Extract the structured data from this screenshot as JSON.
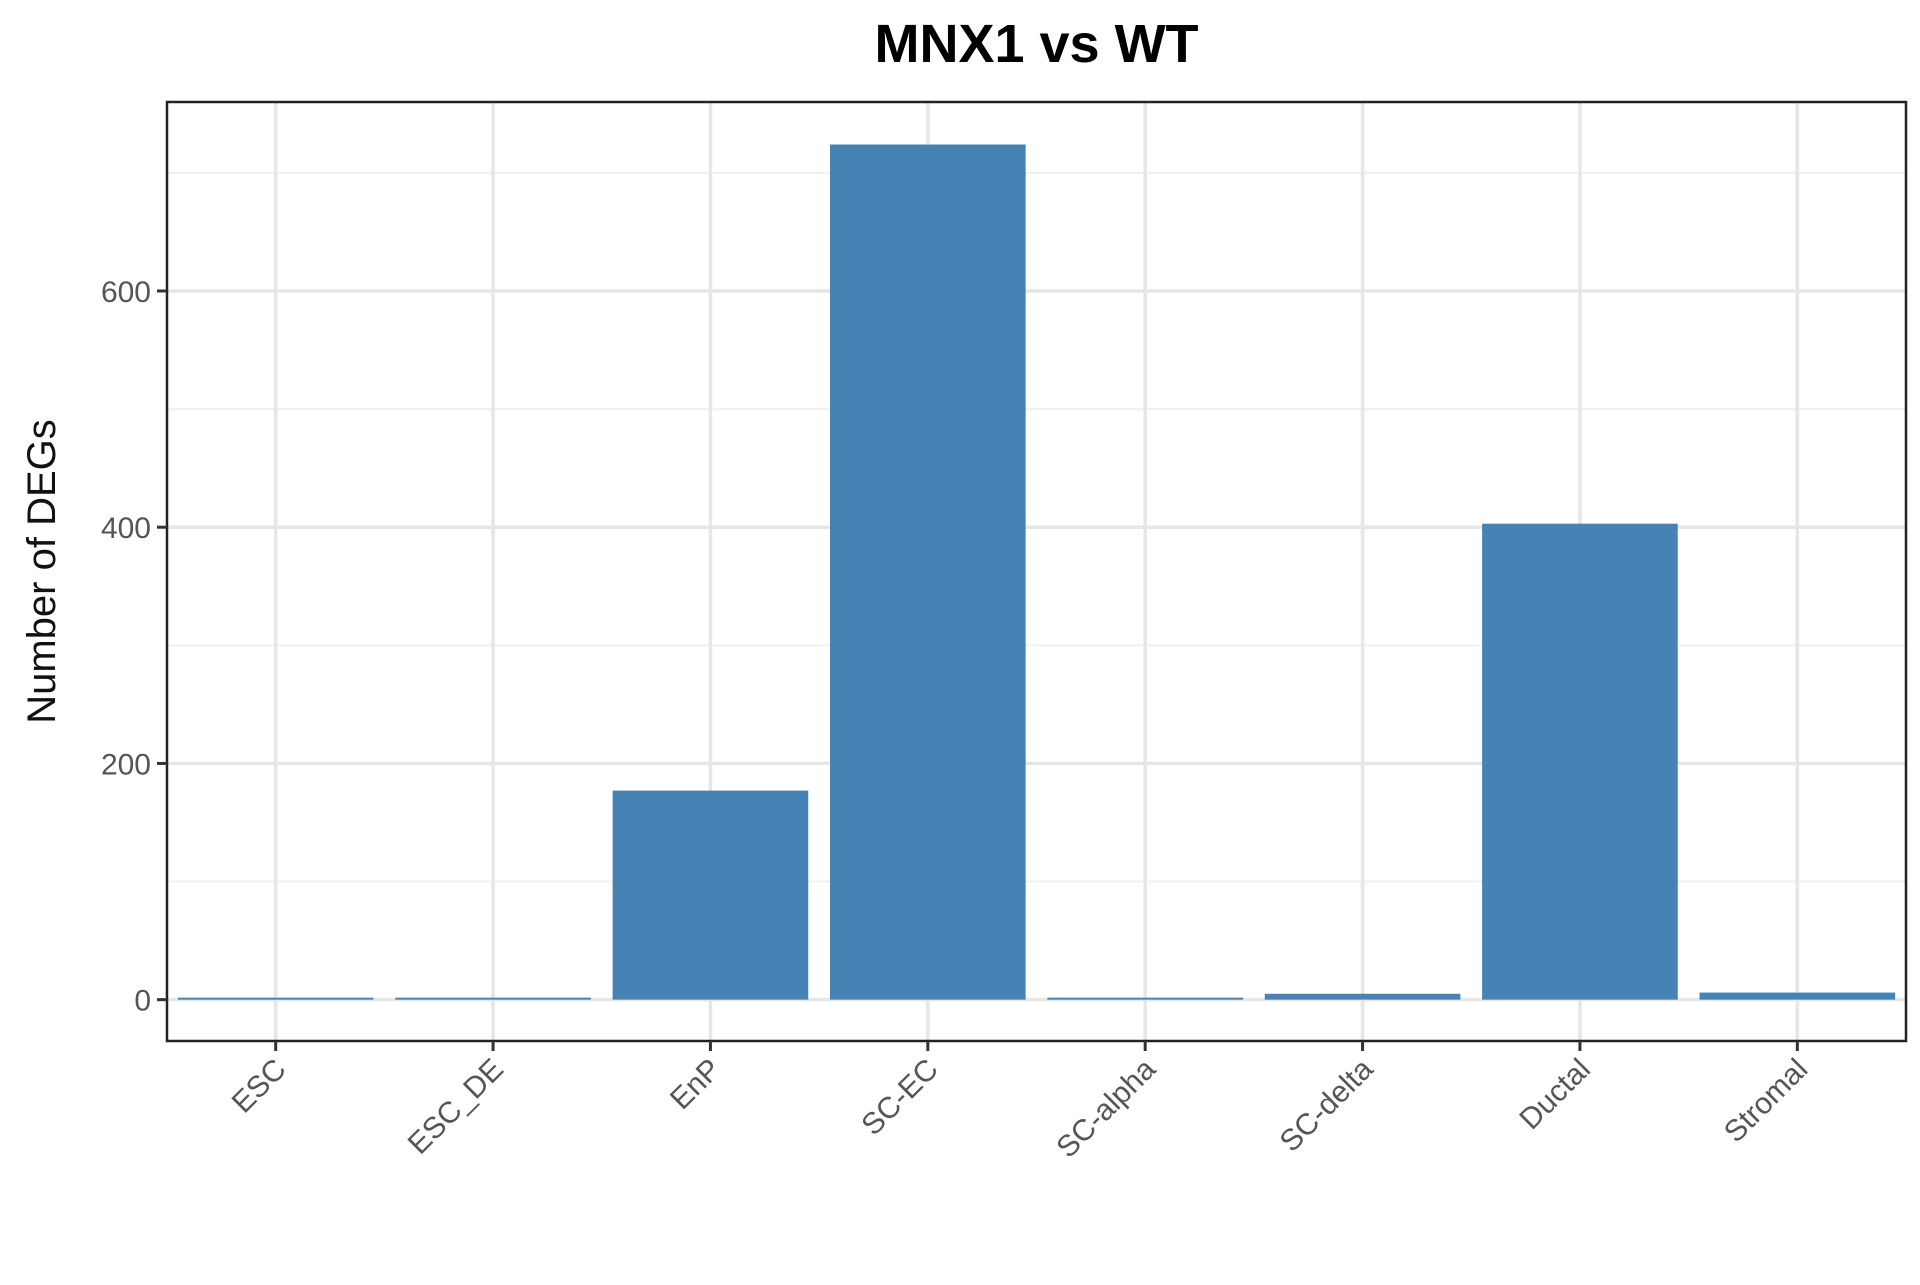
{
  "chart_data": {
    "type": "bar",
    "title": "MNX1 vs WT",
    "xlabel": "",
    "ylabel": "Number of DEGs",
    "categories": [
      "ESC",
      "ESC_DE",
      "EnP",
      "SC-EC",
      "SC-alpha",
      "SC-delta",
      "Ductal",
      "Stromal"
    ],
    "values": [
      1,
      1,
      177,
      724,
      1,
      5,
      403,
      6
    ],
    "ylim": [
      -35,
      760
    ],
    "y_ticks": [
      0,
      200,
      400,
      600
    ],
    "y_tick_labels": [
      "0",
      "200",
      "400",
      "600"
    ],
    "grid": true,
    "legend": "none",
    "bar_color": "#4682B4"
  }
}
